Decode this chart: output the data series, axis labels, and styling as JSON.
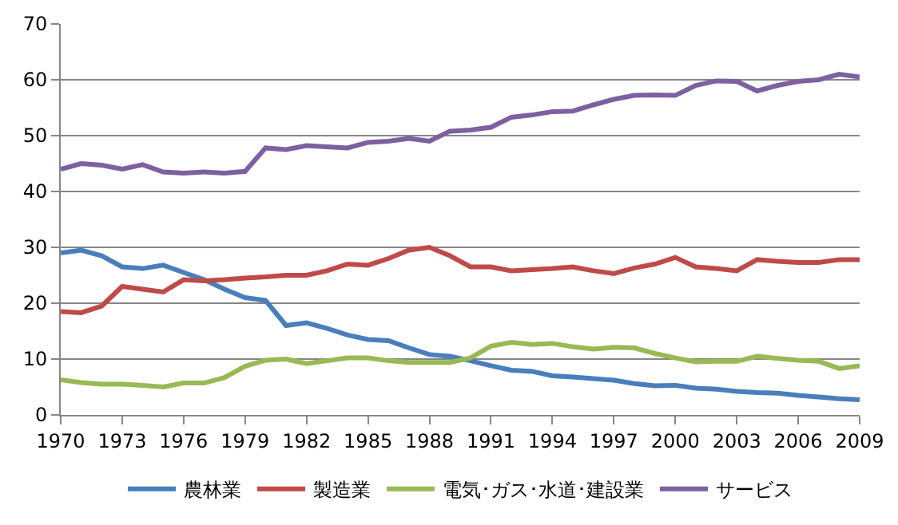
{
  "chart_data": {
    "type": "line",
    "x": [
      1970,
      1971,
      1972,
      1973,
      1974,
      1975,
      1976,
      1977,
      1978,
      1979,
      1980,
      1981,
      1982,
      1983,
      1984,
      1985,
      1986,
      1987,
      1988,
      1989,
      1990,
      1991,
      1992,
      1993,
      1994,
      1995,
      1996,
      1997,
      1998,
      1999,
      2000,
      2001,
      2002,
      2003,
      2004,
      2005,
      2006,
      2007,
      2008,
      2009
    ],
    "series": [
      {
        "name": "農林業",
        "color": "#4a7ebb",
        "values": [
          29,
          29.5,
          28.5,
          26.5,
          26.2,
          26.8,
          25.5,
          24.2,
          22.5,
          21,
          20.5,
          16,
          16.5,
          15.5,
          14.3,
          13.5,
          13.3,
          12,
          10.8,
          10.5,
          9.7,
          8.8,
          8,
          7.8,
          7,
          6.8,
          6.5,
          6.2,
          5.6,
          5.2,
          5.3,
          4.8,
          4.6,
          4.2,
          4,
          3.9,
          3.5,
          3.2,
          2.9,
          2.7
        ]
      },
      {
        "name": "製造業",
        "color": "#be4b48",
        "values": [
          18.5,
          18.3,
          19.5,
          23,
          22.5,
          22,
          24.2,
          24,
          24.2,
          24.5,
          24.7,
          25,
          25,
          25.8,
          27,
          26.8,
          28,
          29.5,
          30,
          28.5,
          26.5,
          26.5,
          25.8,
          26,
          26.2,
          26.5,
          25.8,
          25.3,
          26.3,
          27,
          28.2,
          26.5,
          26.2,
          25.8,
          27.8,
          27.5,
          27.3,
          27.3,
          27.8,
          27.8
        ]
      },
      {
        "name": "電気･ガス･水道･建設業",
        "color": "#98b954",
        "values": [
          6.3,
          5.8,
          5.5,
          5.5,
          5.3,
          5,
          5.7,
          5.7,
          6.7,
          8.7,
          9.8,
          10,
          9.2,
          9.7,
          10.2,
          10.2,
          9.7,
          9.4,
          9.4,
          9.4,
          10.2,
          12.3,
          13,
          12.6,
          12.8,
          12.2,
          11.8,
          12.1,
          12,
          11,
          10.2,
          9.5,
          9.6,
          9.6,
          10.5,
          10.1,
          9.8,
          9.6,
          8.3,
          8.8
        ]
      },
      {
        "name": "サービス",
        "color": "#7d60a0",
        "values": [
          44,
          45,
          44.7,
          44,
          44.8,
          43.5,
          43.3,
          43.5,
          43.3,
          43.6,
          47.8,
          47.5,
          48.2,
          48,
          47.8,
          48.8,
          49,
          49.5,
          49,
          50.8,
          51,
          51.5,
          53.3,
          53.7,
          54.3,
          54.4,
          55.5,
          56.5,
          57.2,
          57.3,
          57.2,
          59,
          59.8,
          59.7,
          58,
          59,
          59.7,
          60,
          61,
          60.5
        ]
      }
    ],
    "xlim": [
      1970,
      2009
    ],
    "xticks": [
      1970,
      1973,
      1976,
      1979,
      1982,
      1985,
      1988,
      1991,
      1994,
      1997,
      2000,
      2003,
      2006,
      2009
    ],
    "ylim": [
      0,
      70
    ],
    "yticks": [
      0,
      10,
      20,
      30,
      40,
      50,
      60,
      70
    ],
    "grid": "y",
    "legend": "bottom",
    "marker": "none",
    "line_style": "solid"
  }
}
